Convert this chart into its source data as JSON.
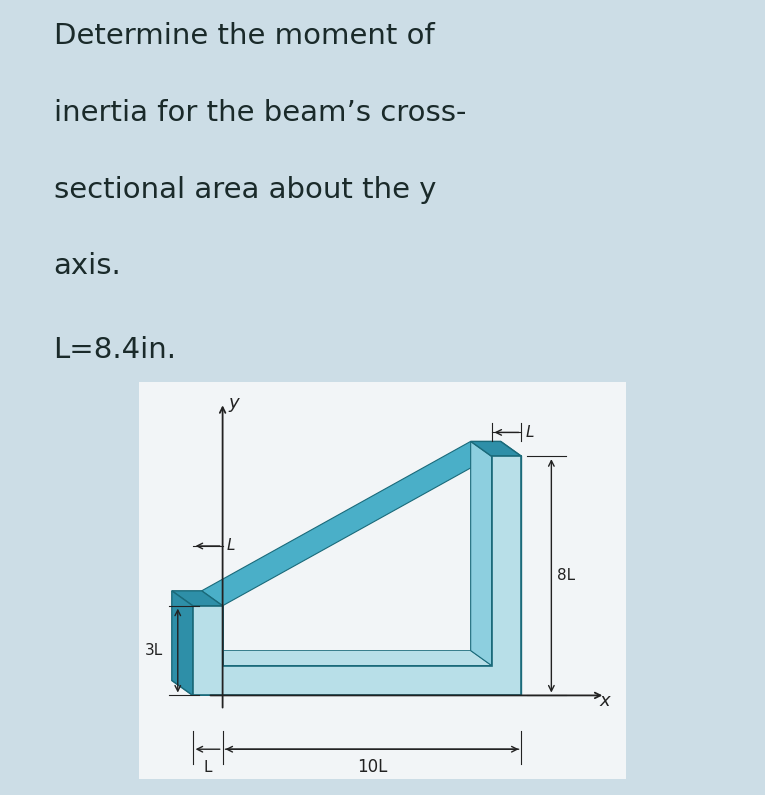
{
  "bg_color": "#ccdde6",
  "diagram_bg": "#f2f5f7",
  "title_lines": [
    "Determine the moment of",
    "inertia for the beam’s cross-",
    "sectional area about the y",
    "axis."
  ],
  "param_line": "L=8.4in.",
  "title_fontsize": 21,
  "param_fontsize": 21,
  "dark_teal": "#2e8fa8",
  "mid_teal": "#4aafc8",
  "light_teal": "#8dcfdf",
  "lighter_teal": "#b8dfe8",
  "dim_color": "#222222",
  "text_color": "#1a2a2a",
  "L": 1.0
}
